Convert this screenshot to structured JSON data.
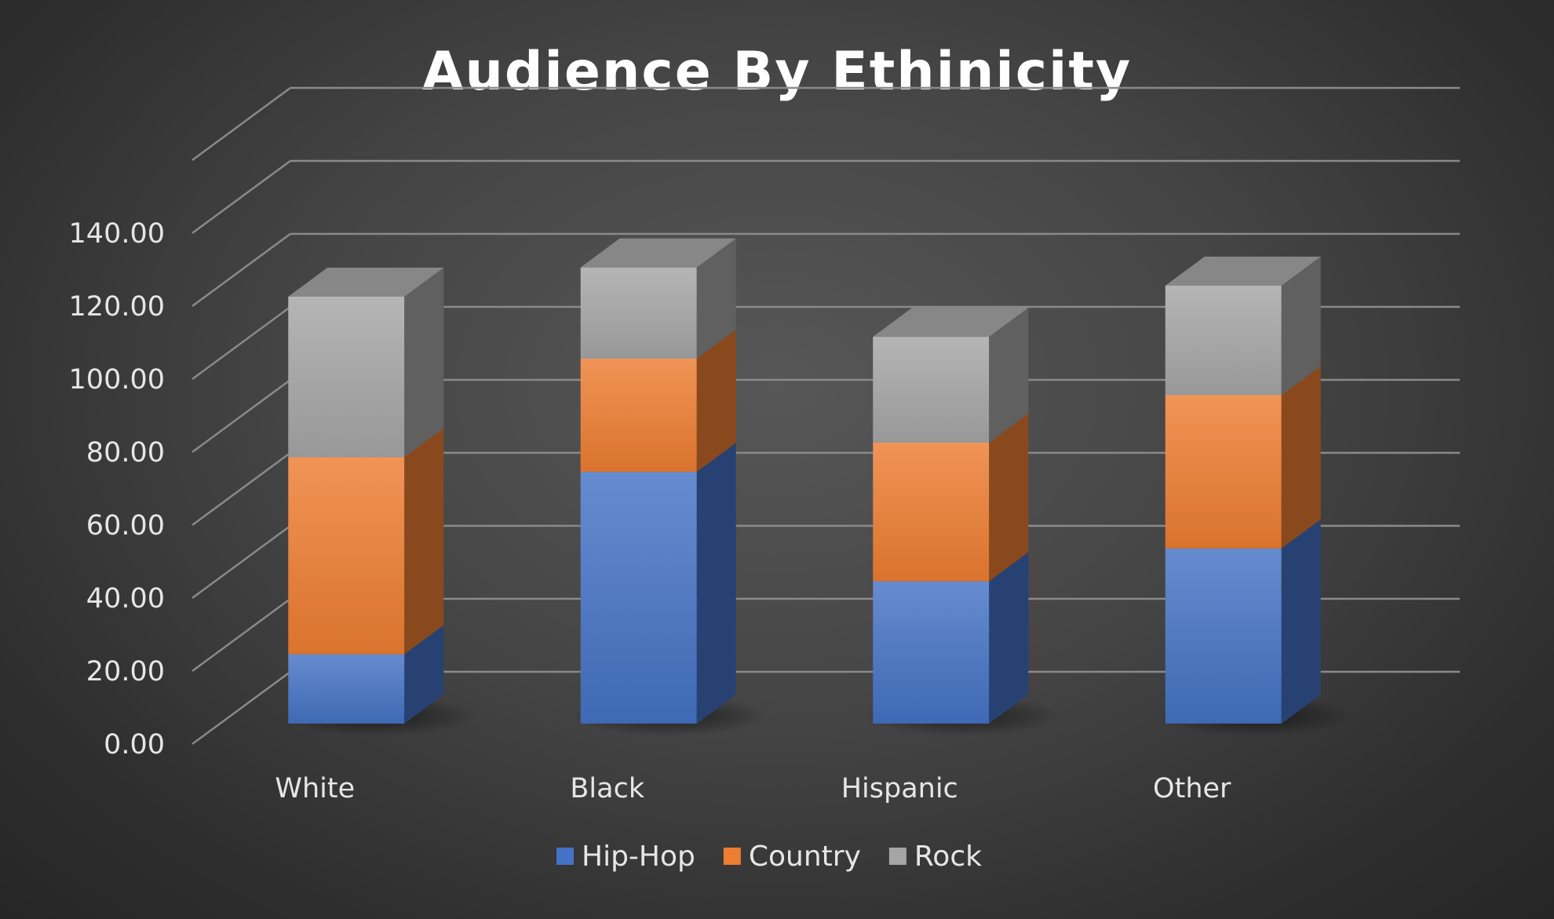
{
  "chart_data": {
    "type": "bar",
    "stacked": true,
    "three_d": true,
    "title": "Audience By Ethinicity",
    "categories": [
      "White",
      "Black",
      "Hispanic",
      "Other"
    ],
    "series": [
      {
        "name": "Hip-Hop",
        "values": [
          19,
          69,
          39,
          48
        ]
      },
      {
        "name": "Country",
        "values": [
          54,
          31,
          38,
          42
        ]
      },
      {
        "name": "Rock",
        "values": [
          44,
          25,
          29,
          30
        ]
      }
    ],
    "yticks": [
      "0.00",
      "20.00",
      "40.00",
      "60.00",
      "80.00",
      "100.00",
      "120.00",
      "140.00"
    ],
    "ylim": [
      0,
      160
    ],
    "grid": true,
    "legend_position": "bottom",
    "colors": {
      "Hip-Hop": "#4472c4",
      "Country": "#ed7d31",
      "Rock": "#a5a5a5"
    }
  }
}
